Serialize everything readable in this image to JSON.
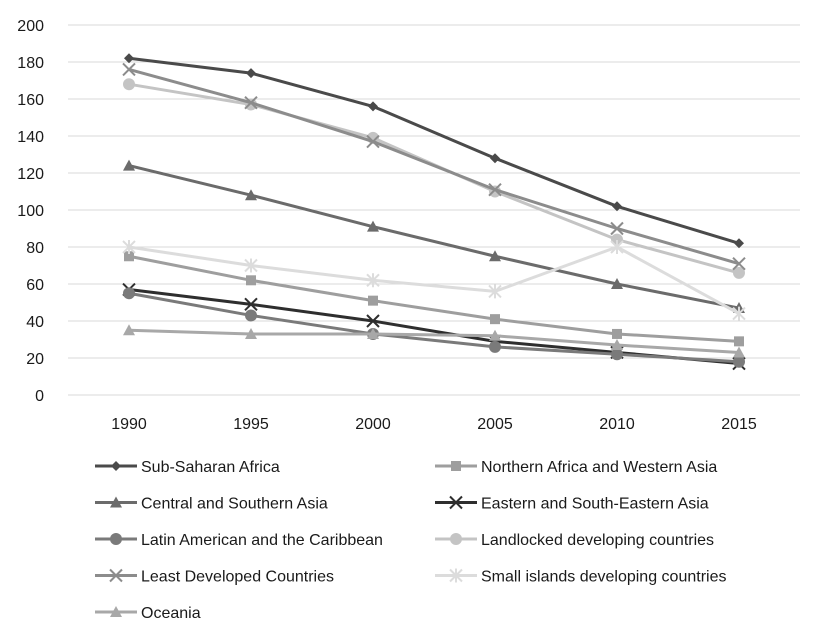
{
  "chart_data": {
    "type": "line",
    "title": "",
    "xlabel": "",
    "ylabel": "",
    "x": [
      "1990",
      "1995",
      "2000",
      "2005",
      "2010",
      "2015"
    ],
    "ylim": [
      0,
      200
    ],
    "yticks": [
      0,
      20,
      40,
      60,
      80,
      100,
      120,
      140,
      160,
      180,
      200
    ],
    "grid": "horizontal",
    "legend_position": "bottom",
    "series": [
      {
        "name": "Sub-Saharan Africa",
        "values": [
          182,
          174,
          156,
          128,
          102,
          82
        ],
        "color": "#4a4a4a",
        "marker": "diamond"
      },
      {
        "name": "Northern Africa and Western Asia",
        "values": [
          75,
          62,
          51,
          41,
          33,
          29
        ],
        "color": "#9e9e9e",
        "marker": "square"
      },
      {
        "name": "Central and Southern Asia",
        "values": [
          124,
          108,
          91,
          75,
          60,
          47
        ],
        "color": "#6b6b6b",
        "marker": "triangle"
      },
      {
        "name": "Eastern and South-Eastern Asia",
        "values": [
          57,
          49,
          40,
          29,
          23,
          17
        ],
        "color": "#2e2e2e",
        "marker": "x"
      },
      {
        "name": "Latin American and the Caribbean",
        "values": [
          55,
          43,
          33,
          26,
          22,
          18
        ],
        "color": "#7a7a7a",
        "marker": "circle"
      },
      {
        "name": "Landlocked developing countries",
        "values": [
          168,
          157,
          139,
          110,
          84,
          66
        ],
        "color": "#c4c4c4",
        "marker": "circle"
      },
      {
        "name": "Least Developed Countries",
        "values": [
          176,
          158,
          137,
          111,
          90,
          71
        ],
        "color": "#8c8c8c",
        "marker": "x"
      },
      {
        "name": "Small islands developing countries",
        "values": [
          80,
          70,
          62,
          56,
          80,
          44
        ],
        "color": "#dcdcdc",
        "marker": "star"
      },
      {
        "name": "Oceania",
        "values": [
          35,
          33,
          33,
          32,
          27,
          23
        ],
        "color": "#a8a8a8",
        "marker": "triangle"
      }
    ]
  }
}
